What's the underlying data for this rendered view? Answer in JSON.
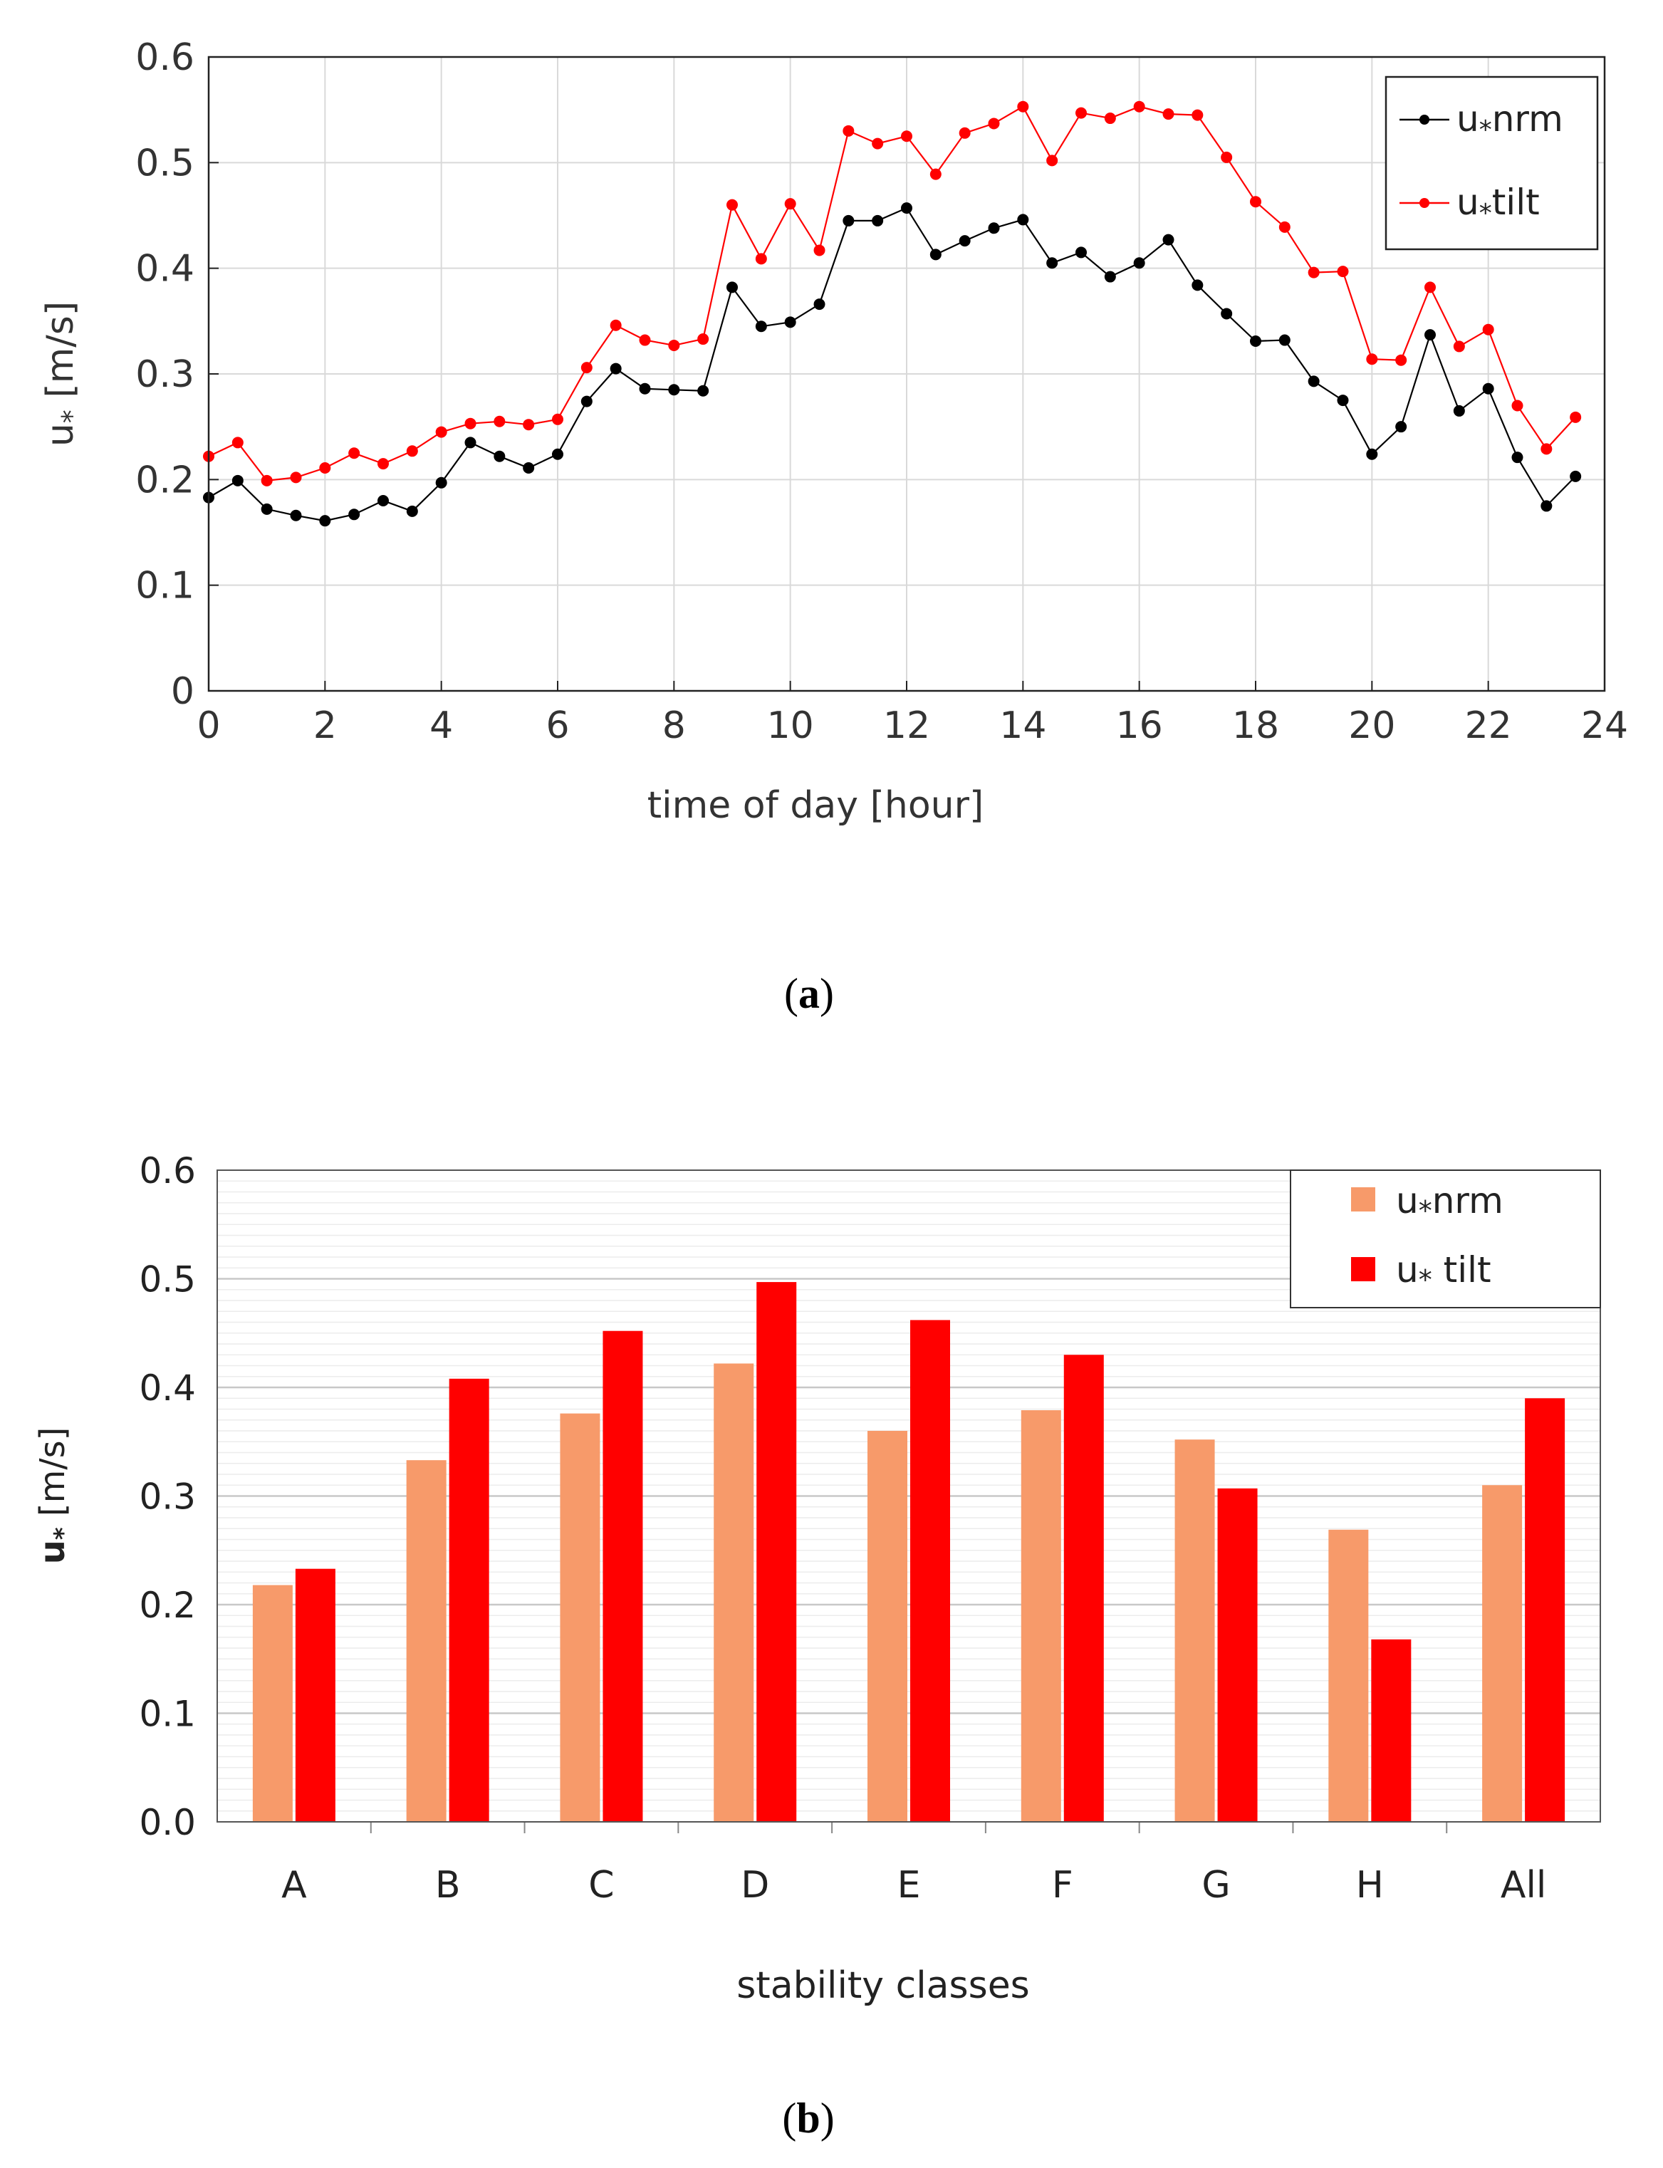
{
  "chart_data": [
    {
      "id": "a",
      "type": "line",
      "caption": "a",
      "xlabel": "time of day [hour]",
      "ylabel_base": "u",
      "ylabel_sub": "*",
      "ylabel_unit": "[m/s]",
      "xlim": [
        0,
        24
      ],
      "ylim": [
        0,
        0.6
      ],
      "xticks": [
        "0",
        "2",
        "4",
        "6",
        "8",
        "10",
        "12",
        "14",
        "16",
        "18",
        "20",
        "22",
        "24"
      ],
      "yticks": [
        "0",
        "0.1",
        "0.2",
        "0.3",
        "0.4",
        "0.5",
        "0.6"
      ],
      "grid": true,
      "legend_position": "top-right",
      "x": [
        0,
        0.5,
        1,
        1.5,
        2,
        2.5,
        3,
        3.5,
        4,
        4.5,
        5,
        5.5,
        6,
        6.5,
        7,
        7.5,
        8,
        8.5,
        9,
        9.5,
        10,
        10.5,
        11,
        11.5,
        12,
        12.5,
        13,
        13.5,
        14,
        14.5,
        15,
        15.5,
        16,
        16.5,
        17,
        17.5,
        18,
        18.5,
        19,
        19.5,
        20,
        20.5,
        21,
        21.5,
        22,
        22.5,
        23,
        23.5
      ],
      "series": [
        {
          "name": "u*nrm",
          "legend_base": "u",
          "legend_sub": "*",
          "legend_rest": "nrm",
          "color": "#000000",
          "values": [
            0.183,
            0.199,
            0.172,
            0.166,
            0.161,
            0.167,
            0.18,
            0.17,
            0.197,
            0.235,
            0.222,
            0.211,
            0.224,
            0.274,
            0.305,
            0.286,
            0.285,
            0.284,
            0.382,
            0.345,
            0.349,
            0.366,
            0.445,
            0.445,
            0.457,
            0.413,
            0.426,
            0.438,
            0.446,
            0.405,
            0.415,
            0.392,
            0.405,
            0.427,
            0.384,
            0.357,
            0.331,
            0.332,
            0.293,
            0.275,
            0.224,
            0.25,
            0.337,
            0.265,
            0.286,
            0.221,
            0.175,
            0.203
          ]
        },
        {
          "name": "u*tilt",
          "legend_base": "u",
          "legend_sub": "*",
          "legend_rest": "tilt",
          "color": "#ff0000",
          "values": [
            0.222,
            0.235,
            0.199,
            0.202,
            0.211,
            0.225,
            0.215,
            0.227,
            0.245,
            0.253,
            0.255,
            0.252,
            0.257,
            0.306,
            0.346,
            0.332,
            0.327,
            0.333,
            0.46,
            0.409,
            0.461,
            0.417,
            0.53,
            0.518,
            0.525,
            0.489,
            0.528,
            0.537,
            0.553,
            0.502,
            0.547,
            0.542,
            0.553,
            0.546,
            0.545,
            0.505,
            0.463,
            0.439,
            0.396,
            0.397,
            0.314,
            0.313,
            0.382,
            0.326,
            0.342,
            0.27,
            0.229,
            0.259
          ]
        }
      ]
    },
    {
      "id": "b",
      "type": "bar",
      "caption": "b",
      "xlabel": "stability classes",
      "ylabel_base": "u",
      "ylabel_sub": "*",
      "ylabel_unit": "[m/s]",
      "ylim": [
        0,
        0.6
      ],
      "yticks": [
        "0.0",
        "0.1",
        "0.2",
        "0.3",
        "0.4",
        "0.5",
        "0.6"
      ],
      "categories": [
        "A",
        "B",
        "C",
        "D",
        "E",
        "F",
        "G",
        "H",
        "All"
      ],
      "grid": true,
      "legend_position": "top-right",
      "series": [
        {
          "name": "u*nrm",
          "legend_base": "u",
          "legend_sub": "*",
          "legend_rest": "nrm",
          "color": "#f79a6a",
          "values": [
            0.218,
            0.333,
            0.376,
            0.422,
            0.36,
            0.379,
            0.352,
            0.269,
            0.31
          ]
        },
        {
          "name": "u*tilt",
          "legend_base": "u",
          "legend_sub": "*",
          "legend_rest": " tilt",
          "color": "#ff0000",
          "values": [
            0.233,
            0.408,
            0.452,
            0.497,
            0.462,
            0.43,
            0.307,
            0.168,
            0.39
          ]
        }
      ]
    }
  ]
}
